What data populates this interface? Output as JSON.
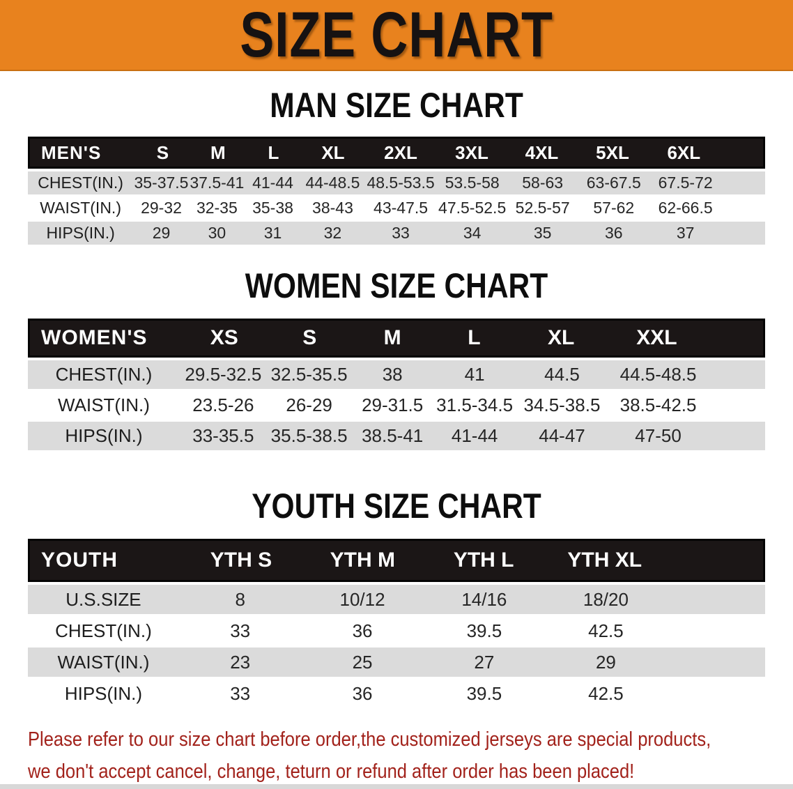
{
  "banner": {
    "title": "SIZE CHART",
    "bg_color": "#E8821E"
  },
  "theme": {
    "table_header_bg": "#1B1616",
    "shaded_row_bg": "#DBDBDB",
    "heading_color": "#0D0D0D"
  },
  "sections": [
    {
      "heading": "MAN SIZE CHART",
      "header_label": "MEN'S",
      "columns": [
        "S",
        "M",
        "L",
        "XL",
        "2XL",
        "3XL",
        "4XL",
        "5XL",
        "6XL"
      ],
      "rows": [
        {
          "label": "CHEST(IN.)",
          "values": [
            "35-37.5",
            "37.5-41",
            "41-44",
            "44-48.5",
            "48.5-53.5",
            "53.5-58",
            "58-63",
            "63-67.5",
            "67.5-72"
          ]
        },
        {
          "label": "WAIST(IN.)",
          "values": [
            "29-32",
            "32-35",
            "35-38",
            "38-43",
            "43-47.5",
            "47.5-52.5",
            "52.5-57",
            "57-62",
            "62-66.5"
          ]
        },
        {
          "label": "HIPS(IN.)",
          "values": [
            "29",
            "30",
            "31",
            "32",
            "33",
            "34",
            "35",
            "36",
            "37"
          ]
        }
      ]
    },
    {
      "heading": "WOMEN SIZE CHART",
      "header_label": "WOMEN'S",
      "columns": [
        "XS",
        "S",
        "M",
        "L",
        "XL",
        "XXL"
      ],
      "rows": [
        {
          "label": "CHEST(IN.)",
          "values": [
            "29.5-32.5",
            "32.5-35.5",
            "38",
            "41",
            "44.5",
            "44.5-48.5"
          ]
        },
        {
          "label": "WAIST(IN.)",
          "values": [
            "23.5-26",
            "26-29",
            "29-31.5",
            "31.5-34.5",
            "34.5-38.5",
            "38.5-42.5"
          ]
        },
        {
          "label": "HIPS(IN.)",
          "values": [
            "33-35.5",
            "35.5-38.5",
            "38.5-41",
            "41-44",
            "44-47",
            "47-50"
          ]
        }
      ]
    },
    {
      "heading": "YOUTH SIZE CHART",
      "header_label": "YOUTH",
      "columns": [
        "YTH S",
        "YTH M",
        "YTH L",
        "YTH XL"
      ],
      "rows": [
        {
          "label": "U.S.SIZE",
          "values": [
            "8",
            "10/12",
            "14/16",
            "18/20"
          ]
        },
        {
          "label": "CHEST(IN.)",
          "values": [
            "33",
            "36",
            "39.5",
            "42.5"
          ]
        },
        {
          "label": "WAIST(IN.)",
          "values": [
            "23",
            "25",
            "27",
            "29"
          ]
        },
        {
          "label": "HIPS(IN.)",
          "values": [
            "33",
            "36",
            "39.5",
            "42.5"
          ]
        }
      ]
    }
  ],
  "footer": {
    "line1": "Please refer to our size chart before order,the customized jerseys are special products,",
    "line2": "we don't accept cancel, change, teturn or refund after order has been placed!",
    "text_color": "#A2221B"
  }
}
